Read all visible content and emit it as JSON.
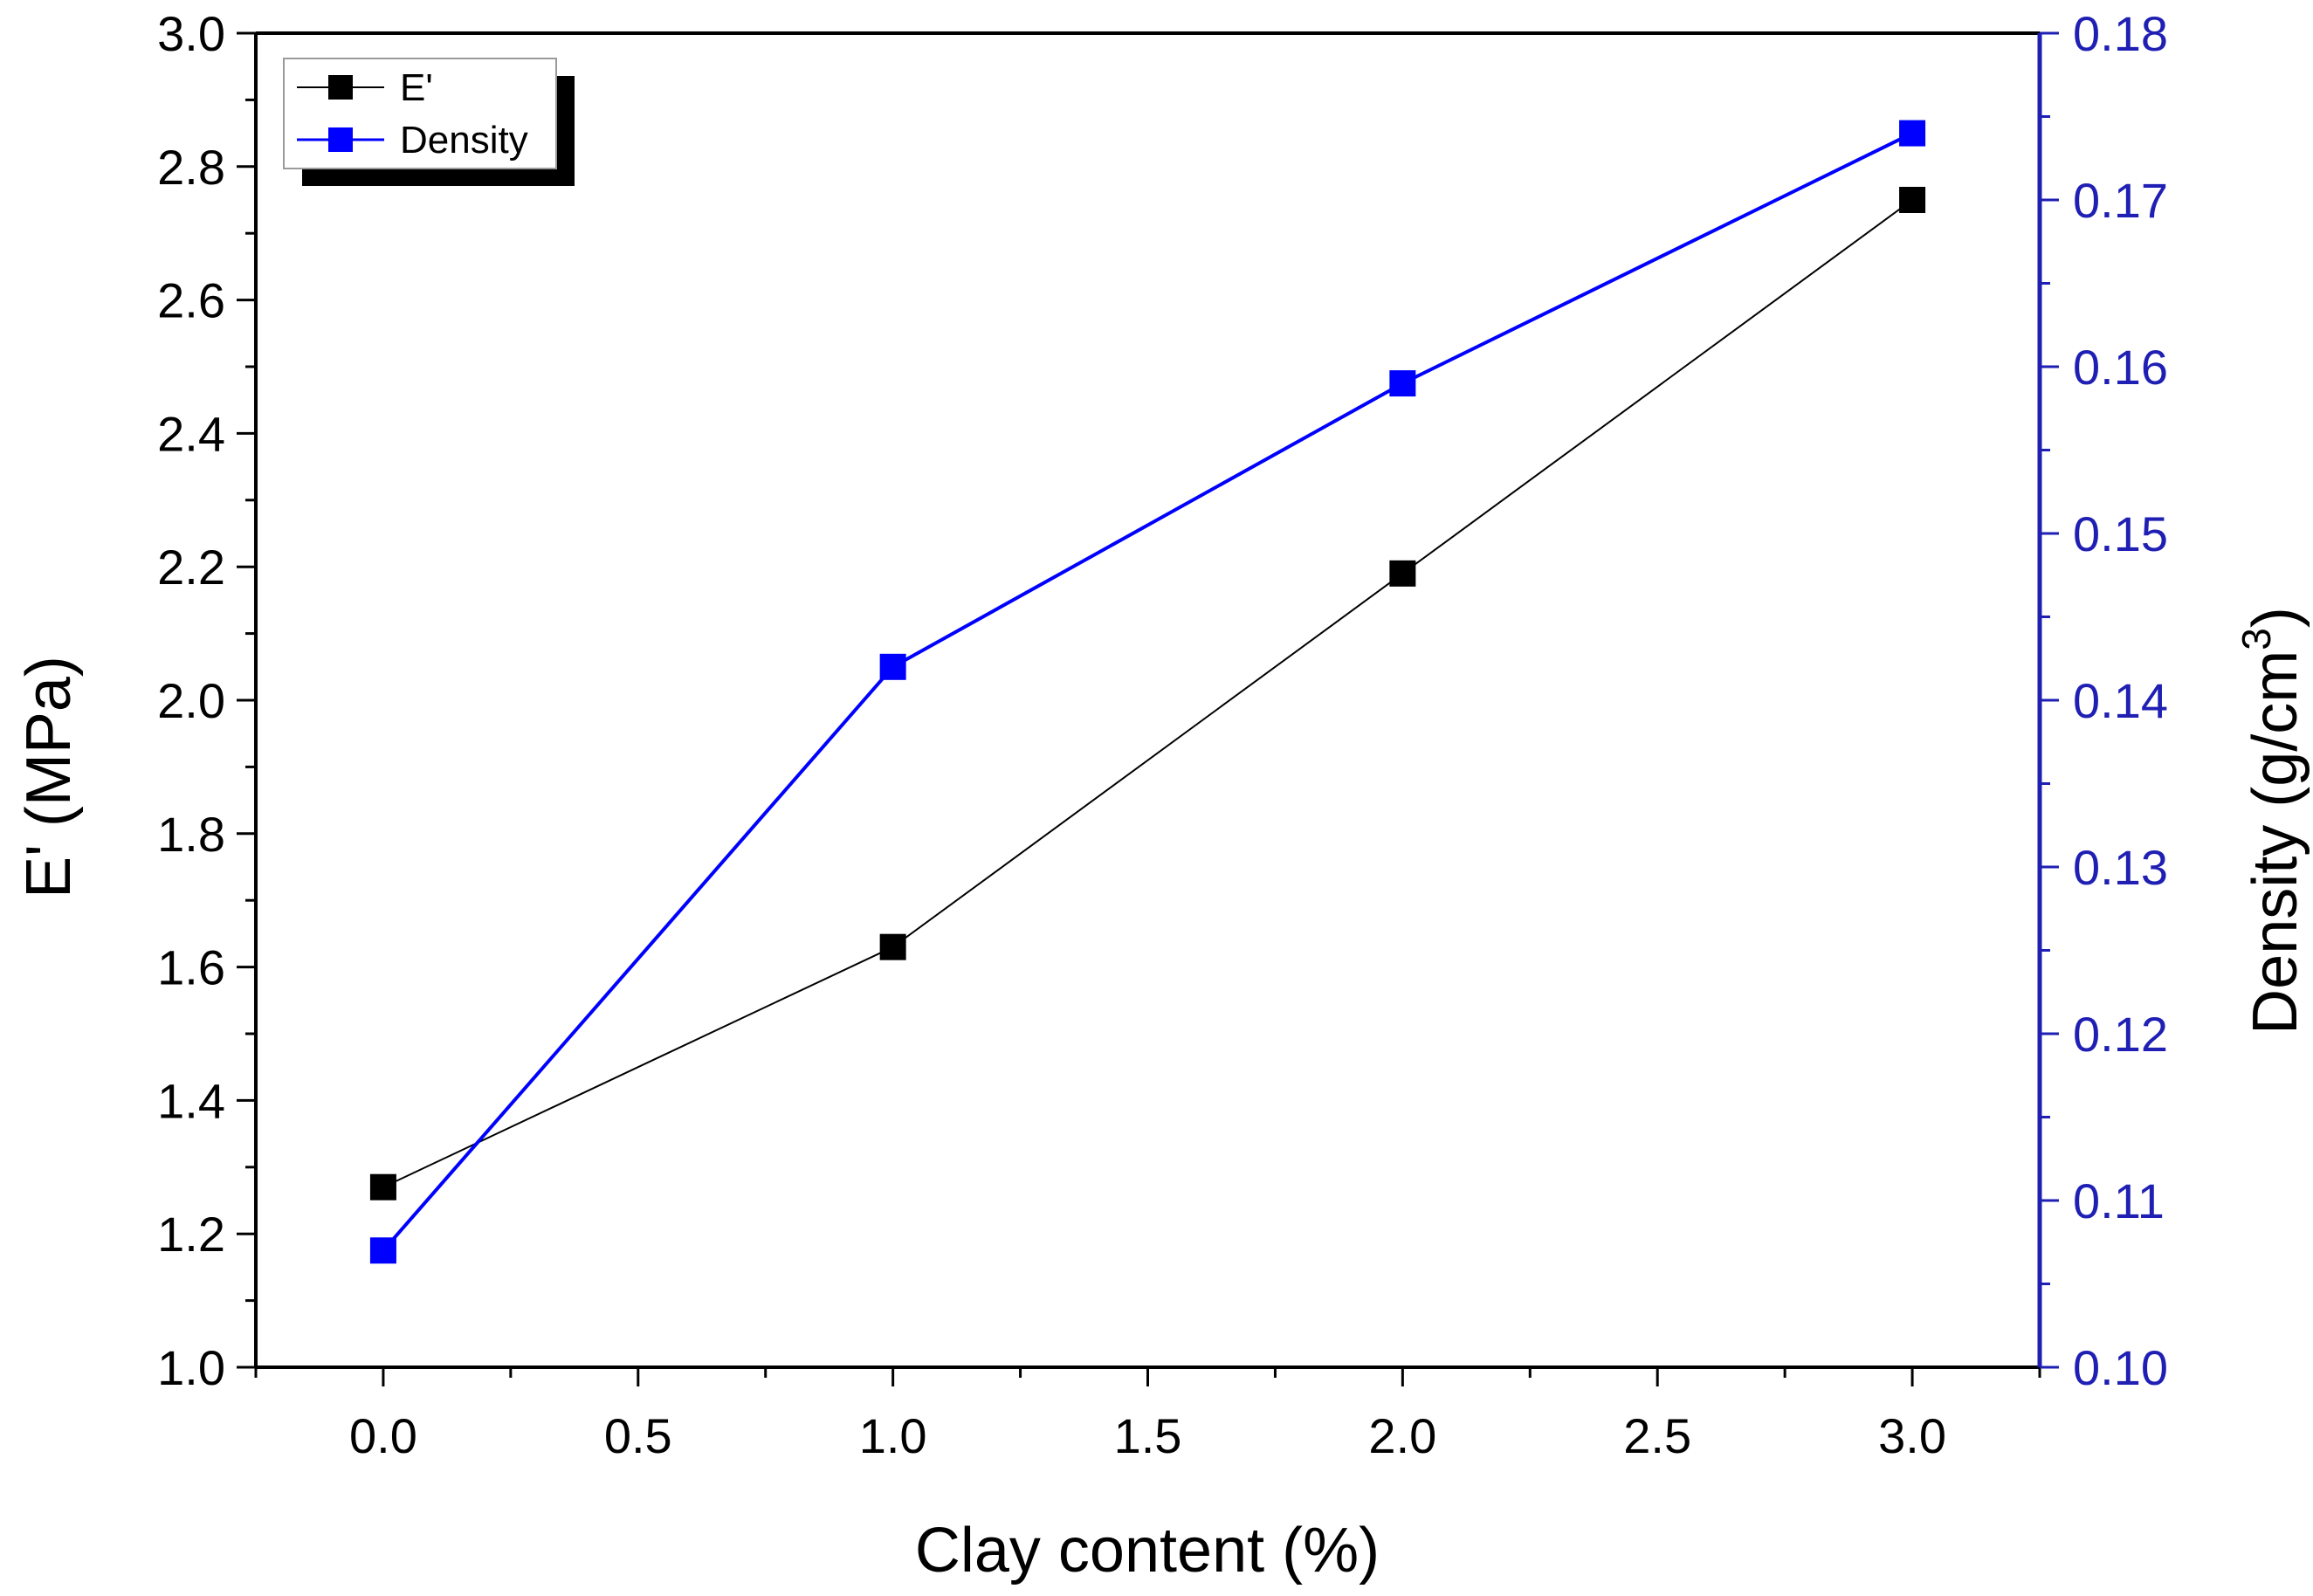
{
  "chart_data": {
    "type": "line",
    "title": "",
    "xlabel": "Clay content (%)",
    "ylabel_left": "E' (MPa)",
    "ylabel_right": "Density (g/cm³)",
    "ylabel_right_base": "Density (g/cm",
    "ylabel_right_sup": "3",
    "ylabel_right_close": ")",
    "xlim": [
      -0.25,
      3.25
    ],
    "ylim_left": [
      1.0,
      3.0
    ],
    "ylim_right": [
      0.1,
      0.18
    ],
    "x_ticks": [
      0.0,
      0.5,
      1.0,
      1.5,
      2.0,
      2.5,
      3.0
    ],
    "x_tick_labels": [
      "0.0",
      "0.5",
      "1.0",
      "1.5",
      "2.0",
      "2.5",
      "3.0"
    ],
    "y_left_ticks": [
      1.0,
      1.2,
      1.4,
      1.6,
      1.8,
      2.0,
      2.2,
      2.4,
      2.6,
      2.8,
      3.0
    ],
    "y_left_tick_labels": [
      "1.0",
      "1.2",
      "1.4",
      "1.6",
      "1.8",
      "2.0",
      "2.2",
      "2.4",
      "2.6",
      "2.8",
      "3.0"
    ],
    "y_right_ticks": [
      0.1,
      0.11,
      0.12,
      0.13,
      0.14,
      0.15,
      0.16,
      0.17,
      0.18
    ],
    "y_right_tick_labels": [
      "0.10",
      "0.11",
      "0.12",
      "0.13",
      "0.14",
      "0.15",
      "0.16",
      "0.17",
      "0.18"
    ],
    "legend_position": "top-left",
    "grid": false,
    "series": [
      {
        "name": "E'",
        "axis": "left",
        "color": "#000000",
        "marker": "square",
        "x": [
          0.0,
          1.0,
          2.0,
          3.0
        ],
        "values": [
          1.27,
          1.63,
          2.19,
          2.75
        ]
      },
      {
        "name": "Density",
        "axis": "right",
        "color": "#0000ff",
        "marker": "square",
        "x": [
          0.0,
          1.0,
          2.0,
          3.0
        ],
        "values": [
          0.107,
          0.142,
          0.159,
          0.174
        ]
      }
    ]
  },
  "colors": {
    "axis_left": "#000000",
    "axis_right": "#1f1fb4",
    "series_e": "#000000",
    "series_density": "#0000ff"
  }
}
